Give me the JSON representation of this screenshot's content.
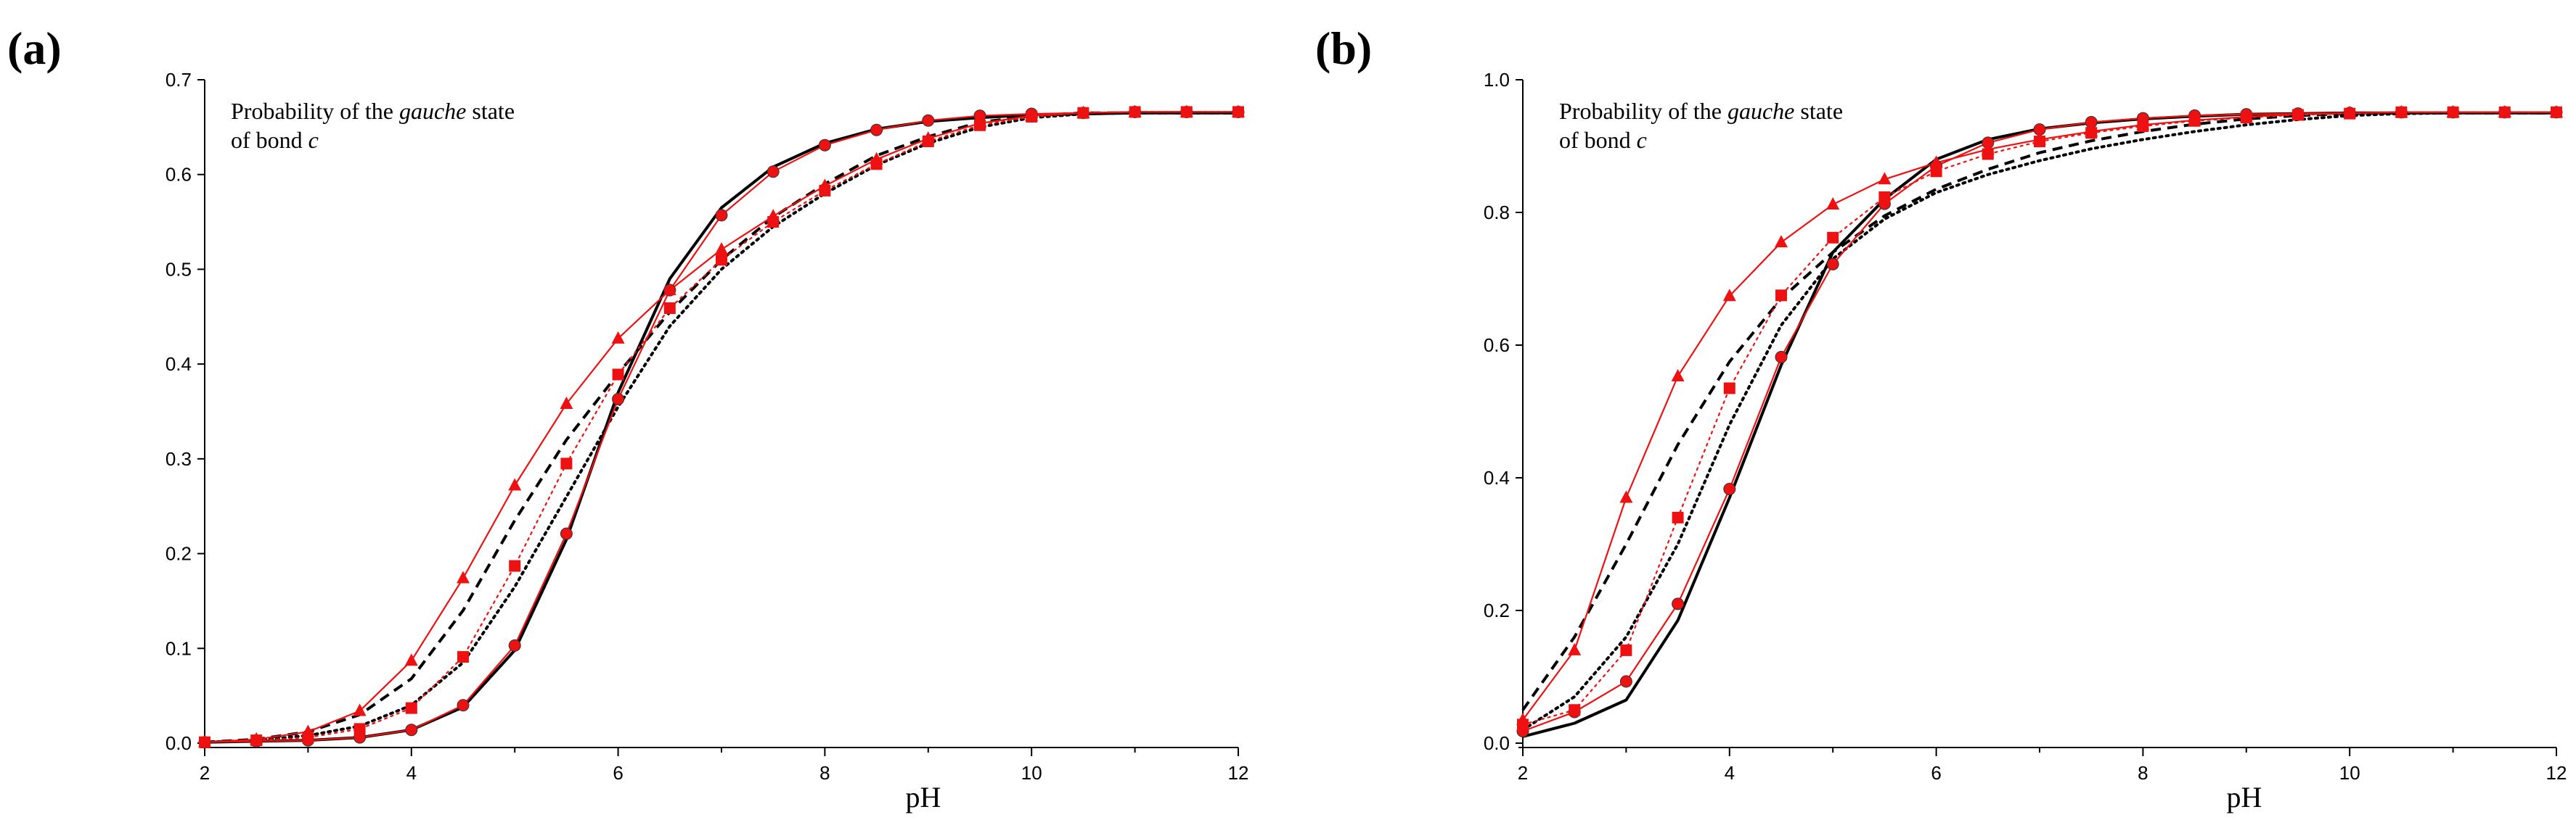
{
  "chart_data": [
    {
      "type": "line",
      "panel_label": "(a)",
      "title": "",
      "annotation_line1_prefix": "Probability of the ",
      "annotation_line1_italic": "gauche",
      "annotation_line1_suffix": " state",
      "annotation_line2_prefix": "of bond ",
      "annotation_line2_italic": "c",
      "xlabel": "pH",
      "ylabel": "",
      "xlim": [
        2,
        12
      ],
      "ylim": [
        0,
        0.7
      ],
      "xticks": [
        2,
        4,
        6,
        8,
        10,
        12
      ],
      "yticks": [
        0.0,
        0.1,
        0.2,
        0.3,
        0.4,
        0.5,
        0.6,
        0.7
      ],
      "ytick_labels": [
        "0.0",
        "0.1",
        "0.2",
        "0.3",
        "0.4",
        "0.5",
        "0.6",
        "0.7"
      ],
      "series": [
        {
          "name": "black-solid",
          "color": "#000000",
          "style": "solid",
          "x": [
            2,
            2.5,
            3,
            3.5,
            4,
            4.5,
            5,
            5.5,
            6,
            6.5,
            7,
            7.5,
            8,
            8.5,
            9,
            9.5,
            10,
            10.5,
            11,
            11.5,
            12
          ],
          "values": [
            0.001,
            0.002,
            0.003,
            0.006,
            0.014,
            0.038,
            0.098,
            0.215,
            0.37,
            0.49,
            0.565,
            0.608,
            0.633,
            0.648,
            0.656,
            0.66,
            0.663,
            0.664,
            0.665,
            0.665,
            0.665
          ]
        },
        {
          "name": "black-dashed",
          "color": "#000000",
          "style": "dashed",
          "x": [
            2,
            2.5,
            3,
            3.5,
            4,
            4.5,
            5,
            5.5,
            6,
            6.5,
            7,
            7.5,
            8,
            8.5,
            9,
            9.5,
            10,
            10.5,
            11,
            11.5,
            12
          ],
          "values": [
            0.001,
            0.004,
            0.012,
            0.03,
            0.068,
            0.14,
            0.235,
            0.32,
            0.39,
            0.455,
            0.51,
            0.555,
            0.59,
            0.62,
            0.64,
            0.655,
            0.662,
            0.665,
            0.665,
            0.665,
            0.665
          ]
        },
        {
          "name": "black-dotted",
          "color": "#000000",
          "style": "dotted",
          "x": [
            2,
            2.5,
            3,
            3.5,
            4,
            4.5,
            5,
            5.5,
            6,
            6.5,
            7,
            7.5,
            8,
            8.5,
            9,
            9.5,
            10,
            10.5,
            11,
            11.5,
            12
          ],
          "values": [
            0.001,
            0.003,
            0.008,
            0.018,
            0.04,
            0.085,
            0.165,
            0.26,
            0.355,
            0.44,
            0.5,
            0.545,
            0.58,
            0.61,
            0.633,
            0.65,
            0.66,
            0.664,
            0.665,
            0.665,
            0.665
          ]
        },
        {
          "name": "red-circle",
          "color": "#ee1111",
          "style": "solid",
          "marker": "circle",
          "x": [
            2,
            2.5,
            3,
            3.5,
            4,
            4.5,
            5,
            5.5,
            6,
            6.5,
            7,
            7.5,
            8,
            8.5,
            9,
            9.5,
            10,
            10.5,
            11,
            11.5,
            12
          ],
          "values": [
            0.001,
            0.002,
            0.003,
            0.006,
            0.014,
            0.04,
            0.103,
            0.221,
            0.363,
            0.478,
            0.557,
            0.603,
            0.631,
            0.647,
            0.657,
            0.662,
            0.664,
            0.665,
            0.666,
            0.666,
            0.666
          ]
        },
        {
          "name": "red-triangle",
          "color": "#ee1111",
          "style": "solid",
          "marker": "triangle",
          "x": [
            2,
            2.5,
            3,
            3.5,
            4,
            4.5,
            5,
            5.5,
            6,
            6.5,
            7,
            7.5,
            8,
            8.5,
            9,
            9.5,
            10,
            10.5,
            11,
            11.5,
            12
          ],
          "values": [
            0.001,
            0.004,
            0.012,
            0.034,
            0.087,
            0.174,
            0.272,
            0.358,
            0.427,
            0.478,
            0.521,
            0.556,
            0.588,
            0.616,
            0.638,
            0.654,
            0.662,
            0.665,
            0.666,
            0.666,
            0.666
          ]
        },
        {
          "name": "red-square",
          "color": "#ee1111",
          "style": "dotted",
          "marker": "square",
          "x": [
            2,
            2.5,
            3,
            3.5,
            4,
            4.5,
            5,
            5.5,
            6,
            6.5,
            7,
            7.5,
            8,
            8.5,
            9,
            9.5,
            10,
            10.5,
            11,
            11.5,
            12
          ],
          "values": [
            0.001,
            0.003,
            0.006,
            0.015,
            0.037,
            0.091,
            0.187,
            0.295,
            0.389,
            0.459,
            0.51,
            0.55,
            0.583,
            0.611,
            0.635,
            0.652,
            0.661,
            0.665,
            0.666,
            0.666,
            0.666
          ]
        }
      ]
    },
    {
      "type": "line",
      "panel_label": "(b)",
      "title": "",
      "annotation_line1_prefix": "Probability of the ",
      "annotation_line1_italic": "gauche",
      "annotation_line1_suffix": " state",
      "annotation_line2_prefix": "of bond ",
      "annotation_line2_italic": "c",
      "xlabel": "pH",
      "ylabel": "",
      "xlim": [
        2,
        12
      ],
      "ylim": [
        0,
        1.0
      ],
      "xticks": [
        2,
        4,
        6,
        8,
        10,
        12
      ],
      "yticks": [
        0.0,
        0.2,
        0.4,
        0.6,
        0.8,
        1.0
      ],
      "ytick_labels": [
        "0.0",
        "0.2",
        "0.4",
        "0.6",
        "0.8",
        "1.0"
      ],
      "series": [
        {
          "name": "black-solid",
          "color": "#000000",
          "style": "solid",
          "x": [
            2,
            2.5,
            3,
            3.5,
            4,
            4.5,
            5,
            5.5,
            6,
            6.5,
            7,
            7.5,
            8,
            8.5,
            9,
            9.5,
            10,
            10.5,
            11,
            11.5,
            12
          ],
          "values": [
            0.01,
            0.03,
            0.065,
            0.185,
            0.37,
            0.57,
            0.74,
            0.82,
            0.88,
            0.91,
            0.926,
            0.935,
            0.941,
            0.945,
            0.948,
            0.949,
            0.95,
            0.95,
            0.95,
            0.95,
            0.95
          ]
        },
        {
          "name": "black-dashed",
          "color": "#000000",
          "style": "dashed",
          "x": [
            2,
            2.5,
            3,
            3.5,
            4,
            4.5,
            5,
            5.5,
            6,
            6.5,
            7,
            7.5,
            8,
            8.5,
            9,
            9.5,
            10,
            10.5,
            11,
            11.5,
            12
          ],
          "values": [
            0.05,
            0.16,
            0.3,
            0.45,
            0.575,
            0.67,
            0.74,
            0.795,
            0.835,
            0.865,
            0.89,
            0.908,
            0.922,
            0.933,
            0.941,
            0.946,
            0.949,
            0.95,
            0.95,
            0.95,
            0.95
          ]
        },
        {
          "name": "black-dotted",
          "color": "#000000",
          "style": "dotted",
          "x": [
            2,
            2.5,
            3,
            3.5,
            4,
            4.5,
            5,
            5.5,
            6,
            6.5,
            7,
            7.5,
            8,
            8.5,
            9,
            9.5,
            10,
            10.5,
            11,
            11.5,
            12
          ],
          "values": [
            0.02,
            0.07,
            0.16,
            0.3,
            0.48,
            0.63,
            0.73,
            0.79,
            0.83,
            0.857,
            0.878,
            0.896,
            0.91,
            0.922,
            0.932,
            0.94,
            0.946,
            0.949,
            0.95,
            0.95,
            0.95
          ]
        },
        {
          "name": "red-circle",
          "color": "#ee1111",
          "style": "solid",
          "marker": "circle",
          "x": [
            2,
            2.5,
            3,
            3.5,
            4,
            4.5,
            5,
            5.5,
            6,
            6.5,
            7,
            7.5,
            8,
            8.5,
            9,
            9.5,
            10,
            10.5,
            11,
            11.5,
            12
          ],
          "values": [
            0.018,
            0.047,
            0.093,
            0.21,
            0.383,
            0.582,
            0.722,
            0.813,
            0.87,
            0.905,
            0.925,
            0.936,
            0.942,
            0.946,
            0.948,
            0.949,
            0.95,
            0.951,
            0.951,
            0.951,
            0.951
          ]
        },
        {
          "name": "red-triangle",
          "color": "#ee1111",
          "style": "solid",
          "marker": "triangle",
          "x": [
            2,
            2.5,
            3,
            3.5,
            4,
            4.5,
            5,
            5.5,
            6,
            6.5,
            7,
            7.5,
            8,
            8.5,
            9,
            9.5,
            10,
            10.5,
            11,
            11.5,
            12
          ],
          "values": [
            0.035,
            0.14,
            0.37,
            0.553,
            0.674,
            0.755,
            0.812,
            0.85,
            0.875,
            0.895,
            0.91,
            0.922,
            0.932,
            0.939,
            0.944,
            0.948,
            0.95,
            0.951,
            0.951,
            0.951,
            0.951
          ]
        },
        {
          "name": "red-square",
          "color": "#ee1111",
          "style": "dotted",
          "marker": "square",
          "x": [
            2,
            2.5,
            3,
            3.5,
            4,
            4.5,
            5,
            5.5,
            6,
            6.5,
            7,
            7.5,
            8,
            8.5,
            9,
            9.5,
            10,
            10.5,
            11,
            11.5,
            12
          ],
          "values": [
            0.028,
            0.05,
            0.14,
            0.34,
            0.535,
            0.675,
            0.762,
            0.823,
            0.862,
            0.888,
            0.907,
            0.92,
            0.93,
            0.938,
            0.943,
            0.947,
            0.949,
            0.951,
            0.951,
            0.951,
            0.951
          ]
        }
      ]
    }
  ]
}
